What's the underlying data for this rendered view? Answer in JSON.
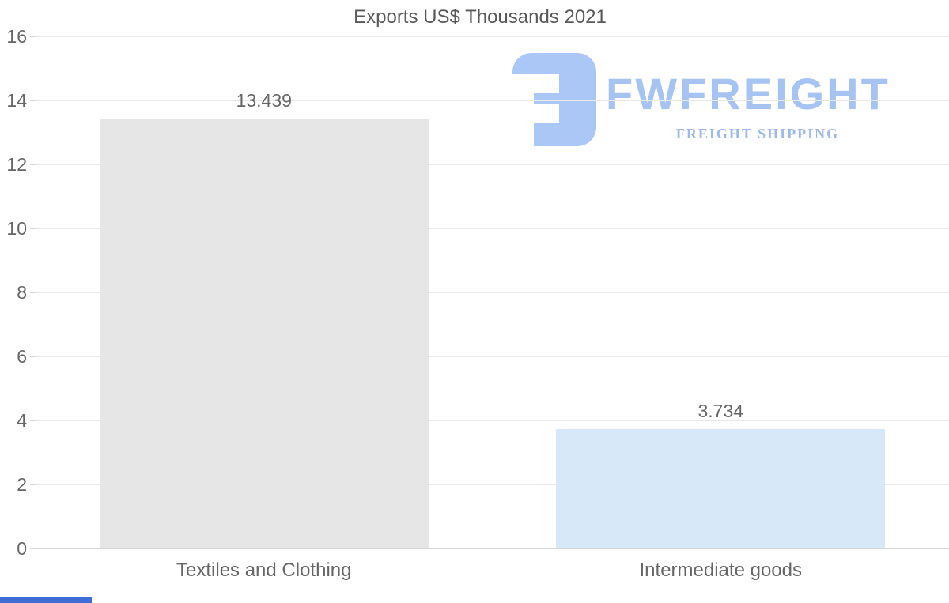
{
  "header": {
    "title": "Exports US$ Thousands 2021"
  },
  "logo": {
    "brand": "FWFREIGHT",
    "tagline": "FREIGHT SHIPPING",
    "mark_color": "#abc7f5",
    "text_color": "#a6c3f1",
    "tagline_color": "#9db9ec"
  },
  "chart_data": {
    "type": "bar",
    "title": "Exports US$ Thousands 2021",
    "categories": [
      "Textiles and Clothing",
      "Intermediate goods"
    ],
    "values": [
      13.439,
      3.734
    ],
    "value_labels": [
      "13.439",
      "3.734"
    ],
    "bar_colors": [
      "#e6e6e6",
      "#d7e8f9"
    ],
    "xlabel": "",
    "ylabel": "",
    "ylim": [
      0,
      16
    ],
    "yticks": [
      0,
      2,
      4,
      6,
      8,
      10,
      12,
      14,
      16
    ],
    "grid": true,
    "legend_position": "none"
  },
  "styles": {
    "grid_color": "#e8e8e8",
    "axis_color": "#d6d6d6",
    "text_color": "#666666",
    "title_color": "#595959"
  },
  "scrollbar": {
    "color": "#3e6dd6"
  }
}
